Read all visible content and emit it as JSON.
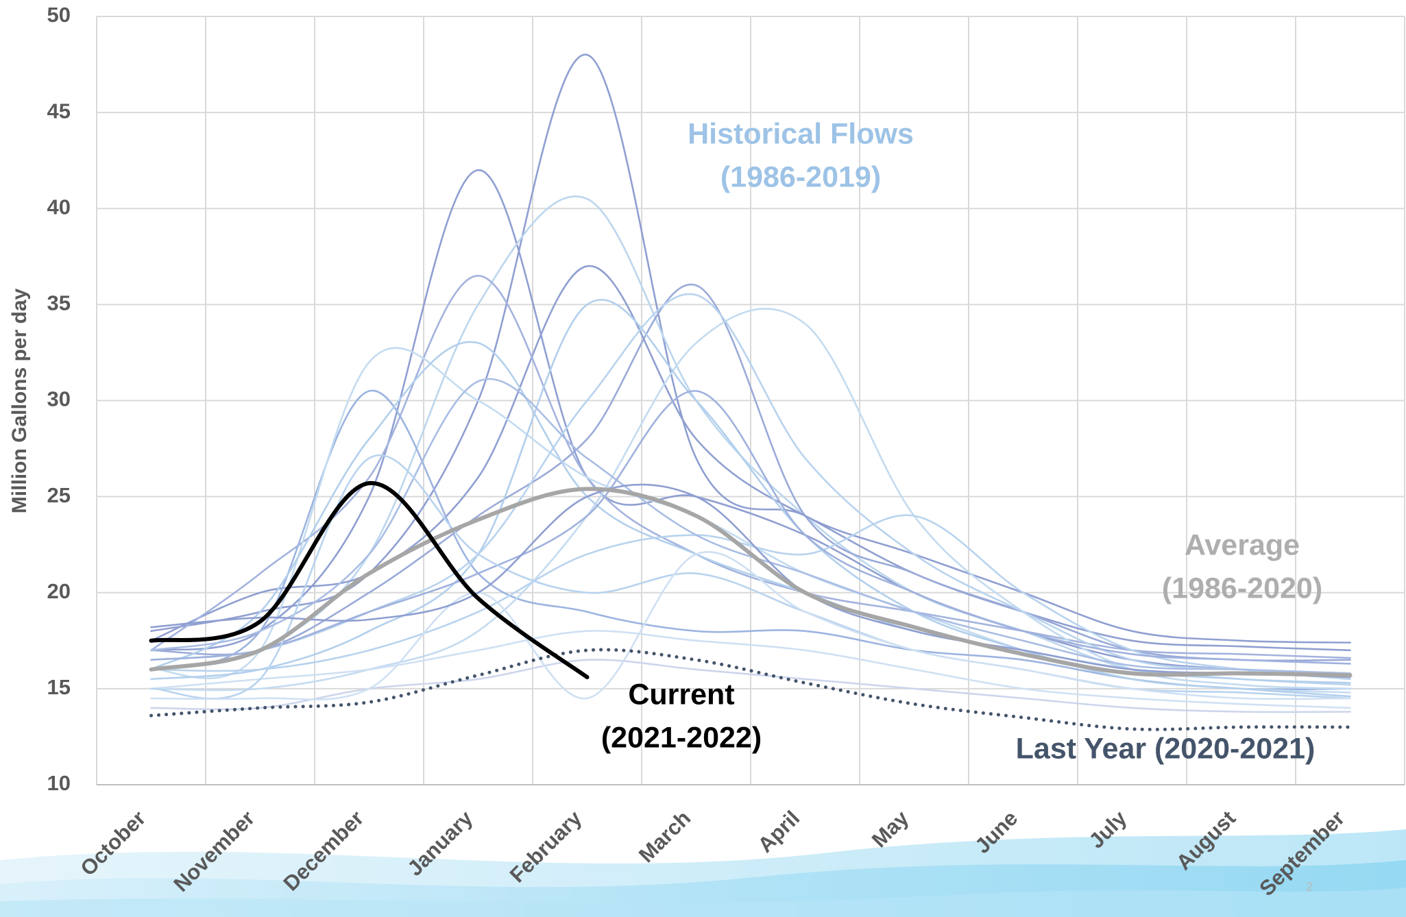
{
  "chart_data": {
    "type": "line",
    "y_label": "Million Gallons per day",
    "categories": [
      "October",
      "November",
      "December",
      "January",
      "February",
      "March",
      "April",
      "May",
      "June",
      "July",
      "August",
      "September"
    ],
    "ylim": [
      10,
      50
    ],
    "yticks": [
      10,
      15,
      20,
      25,
      30,
      35,
      40,
      45,
      50
    ],
    "grid": true,
    "series": [
      {
        "color": "#8f9fd1",
        "values": [
          18,
          19,
          21,
          30,
          48,
          27,
          24,
          21,
          19,
          17.5,
          17.2,
          17
        ]
      },
      {
        "color": "#8f9fd1",
        "values": [
          17,
          18,
          25,
          42,
          26,
          25,
          23,
          20,
          18,
          16.5,
          16,
          15.8
        ]
      },
      {
        "color": "#bcd6ee",
        "values": [
          16,
          17,
          22,
          35,
          40.5,
          30,
          24,
          20,
          18,
          16,
          15.5,
          15.2
        ]
      },
      {
        "color": "#9aaad8",
        "values": [
          17,
          17,
          20,
          24,
          28,
          36,
          24,
          21,
          19,
          17,
          16.5,
          16.5
        ]
      },
      {
        "color": "#8f9fd1",
        "values": [
          17.5,
          20,
          21,
          26,
          37,
          28,
          24,
          22,
          20,
          18,
          17.5,
          17.4
        ]
      },
      {
        "color": "#a3b3de",
        "values": [
          17,
          21,
          26,
          36.5,
          26,
          22,
          20,
          19,
          18,
          17,
          16.8,
          16.6
        ]
      },
      {
        "color": "#9cb4e0",
        "values": [
          16,
          18,
          30.5,
          21,
          19,
          18,
          18,
          17,
          16.5,
          15.5,
          15,
          15
        ]
      },
      {
        "color": "#c3dbf0",
        "values": [
          15,
          15,
          16,
          18,
          24,
          33,
          34,
          24,
          19,
          16,
          15.2,
          15
        ]
      },
      {
        "color": "#c3dbf0",
        "values": [
          16,
          17,
          32,
          30,
          26,
          24,
          21,
          19,
          17,
          15.5,
          15,
          14.8
        ]
      },
      {
        "color": "#b2cfec",
        "values": [
          15.5,
          16,
          18,
          22,
          35,
          30,
          23,
          19,
          17,
          15.5,
          15,
          14.6
        ]
      },
      {
        "color": "#b8d3ee",
        "values": [
          16,
          16,
          17,
          19,
          22,
          23,
          22,
          24,
          20,
          17,
          16,
          15.5
        ]
      },
      {
        "color": "#b8d3ee",
        "values": [
          16.5,
          17,
          19,
          22,
          30,
          35.5,
          27,
          22,
          19,
          16.5,
          16,
          15.8
        ]
      },
      {
        "color": "#cdd5ec",
        "values": [
          14,
          14,
          15,
          15.5,
          16.5,
          16,
          15.5,
          15,
          14.5,
          14,
          13.8,
          13.8
        ]
      },
      {
        "color": "#cfe0f3",
        "values": [
          15,
          15.5,
          16,
          17,
          18,
          17.5,
          17,
          16,
          15,
          14.5,
          14.2,
          14
        ]
      },
      {
        "color": "#b2cfec",
        "values": [
          16,
          19,
          28,
          33,
          25,
          22,
          20,
          18,
          17,
          16,
          15.5,
          15.3
        ]
      },
      {
        "color": "#a9bde4",
        "values": [
          17,
          18,
          22,
          31,
          27,
          23,
          21,
          19,
          17.5,
          16.2,
          16,
          15.8
        ]
      },
      {
        "color": "#9fb1dd",
        "values": [
          16.5,
          17,
          19,
          21,
          24,
          30.5,
          23,
          20,
          18,
          16.8,
          16.5,
          16.3
        ]
      },
      {
        "color": "#b8d3ee",
        "values": [
          15,
          15.5,
          27,
          22,
          20,
          21,
          19,
          17,
          16,
          15,
          14.8,
          14.5
        ]
      },
      {
        "color": "#cfe0f3",
        "values": [
          14.5,
          14.5,
          15,
          20,
          14.5,
          22,
          19,
          17,
          16,
          15,
          14.5,
          14.5
        ]
      },
      {
        "color": "#8f9fd1",
        "values": [
          18.2,
          18.7,
          18.6,
          20,
          25,
          25,
          20,
          18,
          17,
          16,
          15.8,
          15.6
        ]
      },
      {
        "color": "#a6a6a6",
        "style": "bold",
        "values": [
          16,
          17,
          21,
          23.8,
          25.4,
          24,
          20,
          18.2,
          16.8,
          15.8,
          15.8,
          15.7
        ]
      },
      {
        "color": "#44546a",
        "style": "dotted",
        "values": [
          13.6,
          14.0,
          14.3,
          15.7,
          17.0,
          16.5,
          15.3,
          14.2,
          13.5,
          12.9,
          13.0,
          13.0
        ]
      },
      {
        "color": "#000000",
        "style": "bold",
        "values": [
          17.5,
          18.5,
          25.7,
          19.7,
          15.6,
          null,
          null,
          null,
          null,
          null,
          null,
          null
        ]
      }
    ],
    "annotations": [
      {
        "lines": [
          "Historical Flows",
          "(1986-2019)"
        ],
        "color": "#9dc3e6"
      },
      {
        "lines": [
          "Average",
          "(1986-2020)"
        ],
        "color": "#aeaeae"
      },
      {
        "lines": [
          "Current",
          "(2021-2022)"
        ],
        "color": "#000000"
      },
      {
        "lines": [
          "Last Year (2020-2021)"
        ],
        "color": "#44546a"
      }
    ],
    "page_number": "2"
  }
}
